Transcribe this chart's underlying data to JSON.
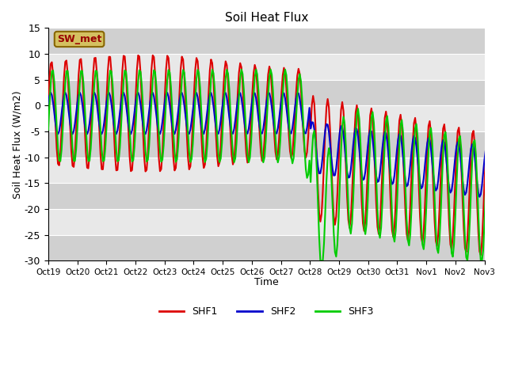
{
  "title": "Soil Heat Flux",
  "xlabel": "Time",
  "ylabel": "Soil Heat Flux (W/m2)",
  "ylim": [
    -30,
    15
  ],
  "yticks": [
    -30,
    -25,
    -20,
    -15,
    -10,
    -5,
    0,
    5,
    10,
    15
  ],
  "line_colors": {
    "SHF1": "#dd0000",
    "SHF2": "#0000cc",
    "SHF3": "#00cc00"
  },
  "line_width": 1.5,
  "annotation_text": "SW_met",
  "annotation_bg": "#d4c060",
  "annotation_border": "#886600",
  "xtick_labels": [
    "Oct 19",
    "Oct 20",
    "Oct 21",
    "Oct 22",
    "Oct 23",
    "Oct 24",
    "Oct 25",
    "Oct 26",
    "Oct 27",
    "Oct 28",
    "Oct 29",
    "Oct 30",
    "Oct 31",
    "Nov 1",
    "Nov 2",
    "Nov 3"
  ],
  "band_colors": [
    "#d0d0d0",
    "#e8e8e8"
  ],
  "n_days": 16
}
